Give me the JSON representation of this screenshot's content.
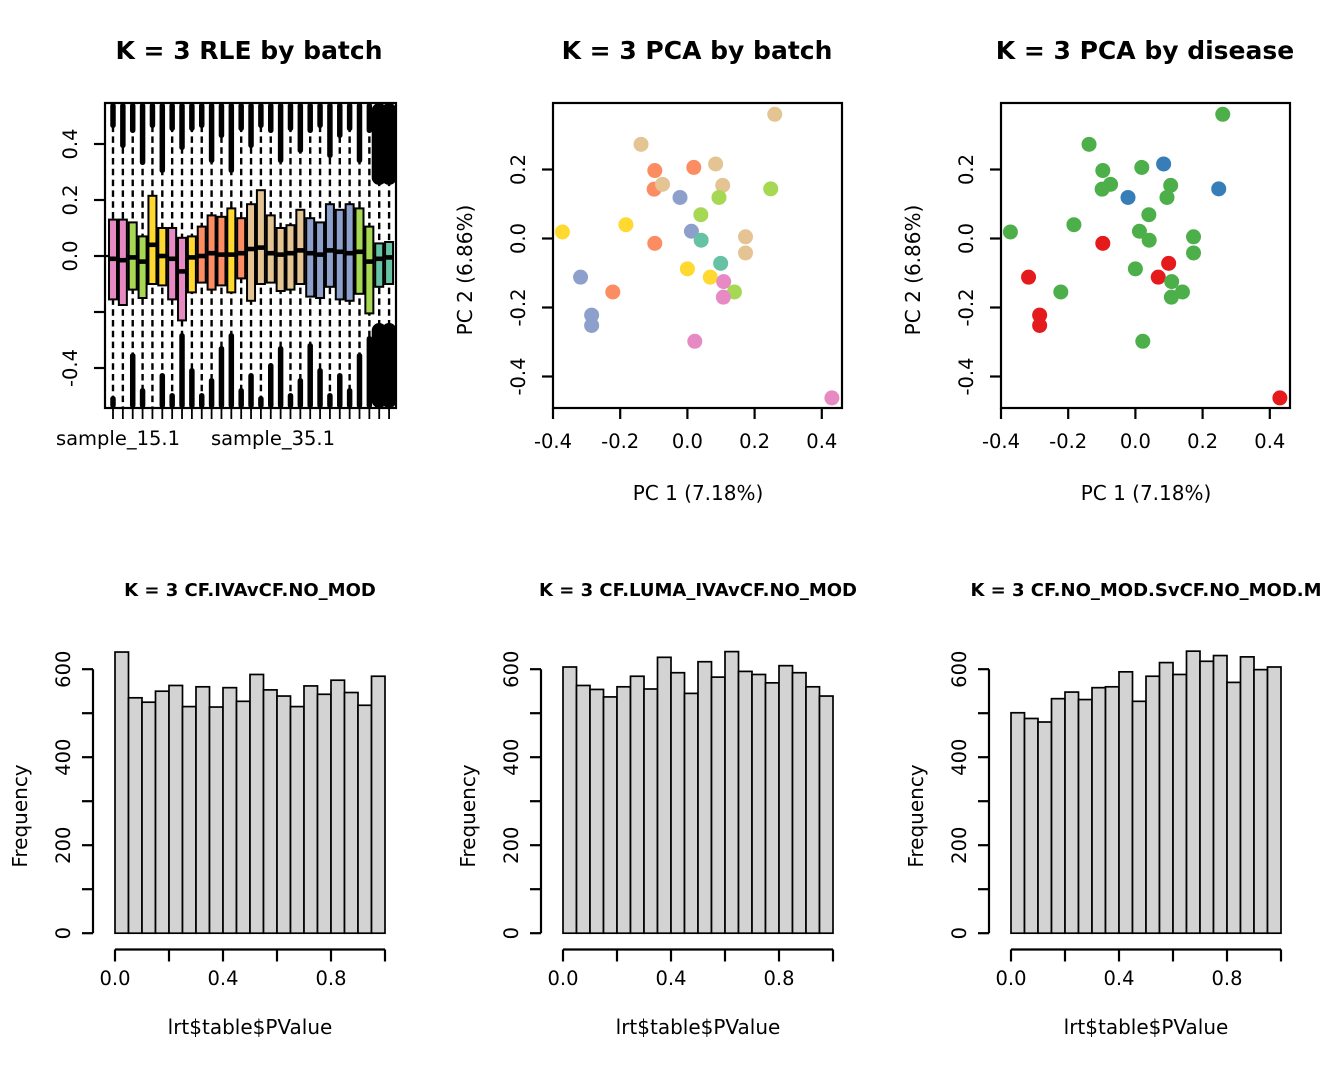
{
  "figure": {
    "background": "#FFFFFF"
  },
  "palette": {
    "teal": "#66C2A5",
    "orange": "#FC8D62",
    "blue": "#8DA0CB",
    "pink": "#E78AC3",
    "green": "#A6D854",
    "yellow": "#FFD92F",
    "tan": "#E5C494",
    "disease-red": "#E41A1C",
    "disease-blue": "#377EB8",
    "disease-green": "#4DAF4A",
    "hist-fill": "#D3D3D3",
    "axis": "#000000"
  },
  "chart_data": [
    {
      "type": "boxplot",
      "title": "K = 3 RLE by batch",
      "x_tick_labels": [
        "sample_15.1",
        "sample_35.1"
      ],
      "ylim": [
        -0.54,
        0.55
      ],
      "grid": false,
      "h_line": 0,
      "y_ticks": [
        {
          "v": 0.4,
          "label": "0.4"
        },
        {
          "v": 0.2,
          "label": "0.2"
        },
        {
          "v": 0.0,
          "label": "0.0"
        },
        {
          "v": -0.2,
          "label": ""
        },
        {
          "v": -0.4,
          "label": "-0.4"
        }
      ],
      "samples": [
        {
          "c": "pink",
          "q3": 0.13,
          "q1": -0.155,
          "m": -0.01,
          "tb": 25,
          "bb": 12
        },
        {
          "c": "pink",
          "q3": 0.13,
          "q1": -0.175,
          "m": -0.015,
          "tb": 45,
          "bb": 0
        },
        {
          "c": "green",
          "q3": 0.12,
          "q1": -0.12,
          "m": -0.005,
          "tb": 30,
          "bb": 55
        },
        {
          "c": "green",
          "q3": 0.07,
          "q1": -0.15,
          "m": -0.02,
          "tb": 62,
          "bb": 20
        },
        {
          "c": "yellow",
          "q3": 0.215,
          "q1": -0.1,
          "m": 0.04,
          "tb": 25,
          "bb": 0
        },
        {
          "c": "yellow",
          "q3": 0.1,
          "q1": -0.105,
          "m": 0.0,
          "tb": 70,
          "bb": 35
        },
        {
          "c": "pink",
          "q3": 0.1,
          "q1": -0.155,
          "m": -0.01,
          "tb": 28,
          "bb": 15
        },
        {
          "c": "pink",
          "q3": 0.065,
          "q1": -0.23,
          "m": -0.055,
          "tb": 47,
          "bb": 75
        },
        {
          "c": "yellow",
          "q3": 0.07,
          "q1": -0.13,
          "m": -0.005,
          "tb": 28,
          "bb": 40
        },
        {
          "c": "orange",
          "q3": 0.105,
          "q1": -0.095,
          "m": 0.0,
          "tb": 25,
          "bb": 15
        },
        {
          "c": "orange",
          "q3": 0.145,
          "q1": -0.12,
          "m": 0.01,
          "tb": 60,
          "bb": 30
        },
        {
          "c": "orange",
          "q3": 0.14,
          "q1": -0.105,
          "m": 0.005,
          "tb": 35,
          "bb": 62
        },
        {
          "c": "yellow",
          "q3": 0.17,
          "q1": -0.13,
          "m": 0.005,
          "tb": 70,
          "bb": 75
        },
        {
          "c": "orange",
          "q3": 0.135,
          "q1": -0.08,
          "m": 0.01,
          "tb": 28,
          "bb": 20
        },
        {
          "c": "tan",
          "q3": 0.185,
          "q1": -0.16,
          "m": 0.025,
          "tb": 45,
          "bb": 35
        },
        {
          "c": "tan",
          "q3": 0.235,
          "q1": -0.1,
          "m": 0.03,
          "tb": 25,
          "bb": 12
        },
        {
          "c": "tan",
          "q3": 0.145,
          "q1": -0.095,
          "m": 0.01,
          "tb": 30,
          "bb": 45
        },
        {
          "c": "tan",
          "q3": 0.1,
          "q1": -0.125,
          "m": 0.005,
          "tb": 60,
          "bb": 62
        },
        {
          "c": "tan",
          "q3": 0.11,
          "q1": -0.12,
          "m": 0.01,
          "tb": 28,
          "bb": 15
        },
        {
          "c": "tan",
          "q3": 0.165,
          "q1": -0.1,
          "m": 0.02,
          "tb": 50,
          "bb": 30
        },
        {
          "c": "blue",
          "q3": 0.135,
          "q1": -0.145,
          "m": 0.01,
          "tb": 30,
          "bb": 65
        },
        {
          "c": "blue",
          "q3": 0.12,
          "q1": -0.15,
          "m": 0.005,
          "tb": 25,
          "bb": 40
        },
        {
          "c": "blue",
          "q3": 0.185,
          "q1": -0.11,
          "m": 0.02,
          "tb": 55,
          "bb": 15
        },
        {
          "c": "blue",
          "q3": 0.165,
          "q1": -0.155,
          "m": 0.015,
          "tb": 35,
          "bb": 35
        },
        {
          "c": "blue",
          "q3": 0.185,
          "q1": -0.16,
          "m": 0.01,
          "tb": 28,
          "bb": 20
        },
        {
          "c": "green",
          "q3": 0.17,
          "q1": -0.135,
          "m": 0.015,
          "tb": 60,
          "bb": 55
        },
        {
          "c": "green",
          "q3": 0.105,
          "q1": -0.205,
          "m": -0.02,
          "tb": 30,
          "bb": 72
        },
        {
          "c": "teal",
          "q3": 0.045,
          "q1": -0.11,
          "m": -0.01,
          "tb": 82,
          "bb": 85,
          "bw": 15
        },
        {
          "c": "teal",
          "q3": 0.05,
          "q1": -0.1,
          "m": -0.005,
          "tb": 82,
          "bb": 85,
          "bw": 15
        }
      ]
    },
    {
      "type": "scatter",
      "title": "K = 3 PCA by batch",
      "xlabel": "PC 1 (7.18%)",
      "ylabel": "PC 2 (6.86%)",
      "xlim": [
        -0.4,
        0.457
      ],
      "ylim": [
        -0.491,
        0.393
      ],
      "grid": false,
      "x_ticks": [
        {
          "v": -0.4,
          "label": "-0.4"
        },
        {
          "v": -0.2,
          "label": "-0.2"
        },
        {
          "v": 0.0,
          "label": "0.0"
        },
        {
          "v": 0.2,
          "label": "0.2"
        },
        {
          "v": 0.4,
          "label": "0.4"
        }
      ],
      "y_ticks": [
        {
          "v": 0.2,
          "label": "0.2"
        },
        {
          "v": 0.0,
          "label": "0.0"
        },
        {
          "v": -0.2,
          "label": "-0.2"
        },
        {
          "v": -0.4,
          "label": "-0.4"
        }
      ],
      "points": [
        {
          "x": 0.26,
          "y": 0.36,
          "color": "tan"
        },
        {
          "x": -0.138,
          "y": 0.273,
          "color": "tan"
        },
        {
          "x": -0.097,
          "y": 0.197,
          "color": "orange"
        },
        {
          "x": 0.019,
          "y": 0.206,
          "color": "orange"
        },
        {
          "x": 0.084,
          "y": 0.216,
          "color": "tan"
        },
        {
          "x": -0.099,
          "y": 0.143,
          "color": "orange"
        },
        {
          "x": -0.074,
          "y": 0.157,
          "color": "tan"
        },
        {
          "x": 0.105,
          "y": 0.154,
          "color": "tan"
        },
        {
          "x": 0.248,
          "y": 0.144,
          "color": "green"
        },
        {
          "x": -0.022,
          "y": 0.119,
          "color": "blue"
        },
        {
          "x": 0.094,
          "y": 0.119,
          "color": "green"
        },
        {
          "x": 0.04,
          "y": 0.069,
          "color": "green"
        },
        {
          "x": -0.183,
          "y": 0.04,
          "color": "yellow"
        },
        {
          "x": -0.372,
          "y": 0.019,
          "color": "yellow"
        },
        {
          "x": 0.012,
          "y": 0.021,
          "color": "blue"
        },
        {
          "x": 0.041,
          "y": -0.005,
          "color": "teal"
        },
        {
          "x": -0.097,
          "y": -0.014,
          "color": "orange"
        },
        {
          "x": 0.173,
          "y": 0.005,
          "color": "tan"
        },
        {
          "x": 0.173,
          "y": -0.042,
          "color": "tan"
        },
        {
          "x": 0.0,
          "y": -0.088,
          "color": "yellow"
        },
        {
          "x": 0.099,
          "y": -0.072,
          "color": "teal"
        },
        {
          "x": 0.068,
          "y": -0.112,
          "color": "yellow"
        },
        {
          "x": 0.108,
          "y": -0.125,
          "color": "pink"
        },
        {
          "x": 0.14,
          "y": -0.155,
          "color": "green"
        },
        {
          "x": 0.107,
          "y": -0.17,
          "color": "pink"
        },
        {
          "x": -0.318,
          "y": -0.112,
          "color": "blue"
        },
        {
          "x": -0.222,
          "y": -0.155,
          "color": "orange"
        },
        {
          "x": -0.285,
          "y": -0.222,
          "color": "blue"
        },
        {
          "x": -0.285,
          "y": -0.252,
          "color": "blue"
        },
        {
          "x": 0.022,
          "y": -0.298,
          "color": "pink"
        },
        {
          "x": 0.43,
          "y": -0.462,
          "color": "pink"
        }
      ]
    },
    {
      "type": "scatter",
      "title": "K = 3 PCA by disease",
      "xlabel": "PC 1 (7.18%)",
      "ylabel": "PC 2 (6.86%)",
      "xlim": [
        -0.4,
        0.457
      ],
      "ylim": [
        -0.491,
        0.393
      ],
      "grid": false,
      "x_ticks": [
        {
          "v": -0.4,
          "label": "-0.4"
        },
        {
          "v": -0.2,
          "label": "-0.2"
        },
        {
          "v": 0.0,
          "label": "0.0"
        },
        {
          "v": 0.2,
          "label": "0.2"
        },
        {
          "v": 0.4,
          "label": "0.4"
        }
      ],
      "y_ticks": [
        {
          "v": 0.2,
          "label": "0.2"
        },
        {
          "v": 0.0,
          "label": "0.0"
        },
        {
          "v": -0.2,
          "label": "-0.2"
        },
        {
          "v": -0.4,
          "label": "-0.4"
        }
      ],
      "points": [
        {
          "x": 0.26,
          "y": 0.36,
          "color": "disease-green"
        },
        {
          "x": -0.138,
          "y": 0.273,
          "color": "disease-green"
        },
        {
          "x": -0.097,
          "y": 0.197,
          "color": "disease-green"
        },
        {
          "x": 0.019,
          "y": 0.206,
          "color": "disease-green"
        },
        {
          "x": 0.084,
          "y": 0.216,
          "color": "disease-blue"
        },
        {
          "x": -0.099,
          "y": 0.143,
          "color": "disease-green"
        },
        {
          "x": -0.074,
          "y": 0.157,
          "color": "disease-green"
        },
        {
          "x": 0.105,
          "y": 0.154,
          "color": "disease-green"
        },
        {
          "x": 0.248,
          "y": 0.144,
          "color": "disease-blue"
        },
        {
          "x": -0.022,
          "y": 0.119,
          "color": "disease-blue"
        },
        {
          "x": 0.094,
          "y": 0.119,
          "color": "disease-green"
        },
        {
          "x": 0.04,
          "y": 0.069,
          "color": "disease-green"
        },
        {
          "x": -0.183,
          "y": 0.04,
          "color": "disease-green"
        },
        {
          "x": -0.372,
          "y": 0.019,
          "color": "disease-green"
        },
        {
          "x": 0.012,
          "y": 0.021,
          "color": "disease-green"
        },
        {
          "x": 0.041,
          "y": -0.005,
          "color": "disease-green"
        },
        {
          "x": -0.097,
          "y": -0.014,
          "color": "disease-red"
        },
        {
          "x": 0.173,
          "y": 0.005,
          "color": "disease-green"
        },
        {
          "x": 0.173,
          "y": -0.042,
          "color": "disease-green"
        },
        {
          "x": 0.0,
          "y": -0.088,
          "color": "disease-green"
        },
        {
          "x": 0.099,
          "y": -0.072,
          "color": "disease-red"
        },
        {
          "x": 0.068,
          "y": -0.112,
          "color": "disease-red"
        },
        {
          "x": 0.108,
          "y": -0.125,
          "color": "disease-green"
        },
        {
          "x": 0.14,
          "y": -0.155,
          "color": "disease-green"
        },
        {
          "x": 0.107,
          "y": -0.17,
          "color": "disease-green"
        },
        {
          "x": -0.318,
          "y": -0.112,
          "color": "disease-red"
        },
        {
          "x": -0.222,
          "y": -0.155,
          "color": "disease-green"
        },
        {
          "x": -0.285,
          "y": -0.222,
          "color": "disease-red"
        },
        {
          "x": -0.285,
          "y": -0.252,
          "color": "disease-red"
        },
        {
          "x": 0.022,
          "y": -0.298,
          "color": "disease-green"
        },
        {
          "x": 0.43,
          "y": -0.462,
          "color": "disease-red"
        }
      ]
    },
    {
      "type": "histogram",
      "title": "K = 3 CF.IVAvCF.NO_MOD",
      "xlabel": "lrt$table$PValue",
      "ylabel": "Frequency",
      "bins": {
        "start": 0,
        "end": 1,
        "width": 0.05
      },
      "ylim": [
        0,
        660
      ],
      "grid": false,
      "counts": [
        639,
        535,
        525,
        550,
        563,
        515,
        560,
        514,
        558,
        527,
        588,
        553,
        539,
        515,
        562,
        543,
        575,
        547,
        518,
        584
      ],
      "x_ticks": [
        {
          "v": 0.0,
          "label": "0.0"
        },
        {
          "v": 0.2,
          "label": ""
        },
        {
          "v": 0.4,
          "label": "0.4"
        },
        {
          "v": 0.6,
          "label": ""
        },
        {
          "v": 0.8,
          "label": "0.8"
        },
        {
          "v": 1.0,
          "label": ""
        }
      ],
      "y_ticks": [
        {
          "v": 0,
          "label": "0"
        },
        {
          "v": 100,
          "label": ""
        },
        {
          "v": 200,
          "label": "200"
        },
        {
          "v": 300,
          "label": ""
        },
        {
          "v": 400,
          "label": "400"
        },
        {
          "v": 500,
          "label": ""
        },
        {
          "v": 600,
          "label": "600"
        }
      ]
    },
    {
      "type": "histogram",
      "title": "K = 3 CF.LUMA_IVAvCF.NO_MOD",
      "xlabel": "lrt$table$PValue",
      "ylabel": "Frequency",
      "bins": {
        "start": 0,
        "end": 1,
        "width": 0.05
      },
      "ylim": [
        0,
        660
      ],
      "grid": false,
      "counts": [
        605,
        563,
        554,
        537,
        560,
        584,
        555,
        627,
        592,
        545,
        617,
        582,
        640,
        595,
        588,
        569,
        608,
        592,
        560,
        539
      ],
      "x_ticks": [
        {
          "v": 0.0,
          "label": "0.0"
        },
        {
          "v": 0.2,
          "label": ""
        },
        {
          "v": 0.4,
          "label": "0.4"
        },
        {
          "v": 0.6,
          "label": ""
        },
        {
          "v": 0.8,
          "label": "0.8"
        },
        {
          "v": 1.0,
          "label": ""
        }
      ],
      "y_ticks": [
        {
          "v": 0,
          "label": "0"
        },
        {
          "v": 100,
          "label": ""
        },
        {
          "v": 200,
          "label": "200"
        },
        {
          "v": 300,
          "label": ""
        },
        {
          "v": 400,
          "label": "400"
        },
        {
          "v": 500,
          "label": ""
        },
        {
          "v": 600,
          "label": "600"
        }
      ]
    },
    {
      "type": "histogram",
      "title": "K = 3 CF.NO_MOD.SvCF.NO_MOD.M",
      "xlabel": "lrt$table$PValue",
      "ylabel": "Frequency",
      "bins": {
        "start": 0,
        "end": 1,
        "width": 0.05
      },
      "ylim": [
        0,
        660
      ],
      "grid": false,
      "counts": [
        501,
        488,
        480,
        533,
        548,
        531,
        558,
        560,
        594,
        527,
        584,
        615,
        588,
        641,
        618,
        631,
        570,
        628,
        599,
        605
      ],
      "x_ticks": [
        {
          "v": 0.0,
          "label": "0.0"
        },
        {
          "v": 0.2,
          "label": ""
        },
        {
          "v": 0.4,
          "label": "0.4"
        },
        {
          "v": 0.6,
          "label": ""
        },
        {
          "v": 0.8,
          "label": "0.8"
        },
        {
          "v": 1.0,
          "label": ""
        }
      ],
      "y_ticks": [
        {
          "v": 0,
          "label": "0"
        },
        {
          "v": 100,
          "label": ""
        },
        {
          "v": 200,
          "label": "200"
        },
        {
          "v": 300,
          "label": ""
        },
        {
          "v": 400,
          "label": "400"
        },
        {
          "v": 500,
          "label": ""
        },
        {
          "v": 600,
          "label": "600"
        }
      ]
    }
  ]
}
